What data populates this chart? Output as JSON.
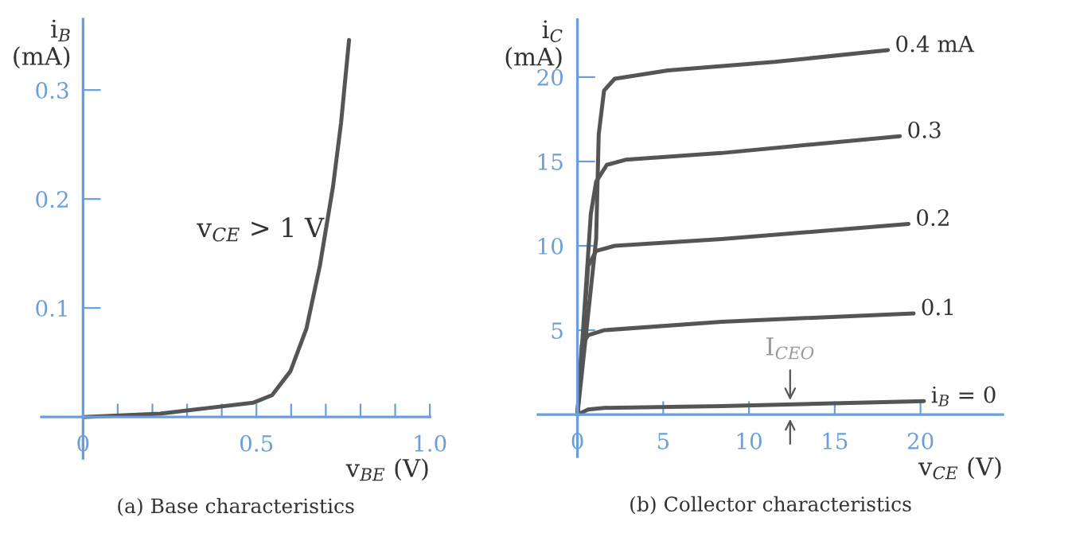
{
  "chart_data": [
    {
      "type": "line",
      "title": "(a) Base characteristics",
      "xlabel": "v$_{BE}$ (V)",
      "ylabel": "i$_{B}$\n(mA)",
      "annotations": [
        "v$_{CE}$ > 1 V"
      ],
      "series": [
        {
          "color": "#555555",
          "x": [
            0,
            0.222,
            0.49,
            0.545,
            0.598,
            0.644,
            0.683,
            0.721,
            0.744,
            0.767
          ],
          "values": [
            0,
            0.003,
            0.013,
            0.02,
            0.042,
            0.081,
            0.139,
            0.212,
            0.27,
            0.346
          ]
        }
      ],
      "xlim": [
        -0.12,
        1.0
      ],
      "ylim": [
        -0.038,
        0.365
      ],
      "xticks": [
        {
          "value": 0,
          "label": "0"
        },
        {
          "value": 0.1,
          "label": null
        },
        {
          "value": 0.2,
          "label": null
        },
        {
          "value": 0.3,
          "label": null
        },
        {
          "value": 0.4,
          "label": null
        },
        {
          "value": 0.5,
          "label": "0.5"
        },
        {
          "value": 0.6,
          "label": null
        },
        {
          "value": 0.7,
          "label": null
        },
        {
          "value": 0.8,
          "label": null
        },
        {
          "value": 0.9,
          "label": null
        },
        {
          "value": 1,
          "label": "1.0"
        }
      ],
      "yticks": [
        0.1,
        0.2,
        0.3
      ],
      "grid": false,
      "legend": false
    },
    {
      "type": "line",
      "title": "(b) Collector characteristics",
      "xlabel": "v$_{CE}$ (V)",
      "ylabel": "i$_{C}$\n(mA)",
      "annotations": [
        {
          "text": "I$_{CEO}$",
          "x": 12.4,
          "y": 0.6
        }
      ],
      "series": [
        {
          "name": "0.4 mA",
          "color": "#555555",
          "x": [
            0,
            1.09,
            1.24,
            1.55,
            2.17,
            5.28,
            11.5,
            18.1
          ],
          "values": [
            0,
            10.4,
            16.6,
            19.2,
            19.9,
            20.4,
            20.9,
            21.6
          ]
        },
        {
          "name": "0.3",
          "color": "#555555",
          "x": [
            0,
            0.78,
            1.09,
            1.71,
            2.8,
            8.4,
            18.8
          ],
          "values": [
            0,
            11.9,
            13.8,
            14.8,
            15.1,
            15.5,
            16.5
          ]
        },
        {
          "name": "0.2",
          "color": "#555555",
          "x": [
            0,
            0.62,
            1.09,
            2.17,
            8.4,
            19.3
          ],
          "values": [
            0,
            8.8,
            9.7,
            10.0,
            10.4,
            11.3
          ]
        },
        {
          "name": "0.1",
          "color": "#555555",
          "x": [
            0,
            0.25,
            0.62,
            1.55,
            8.4,
            19.6
          ],
          "values": [
            0,
            4.1,
            4.7,
            5.0,
            5.5,
            6.0
          ]
        },
        {
          "name": "i$_{B}$ = 0",
          "color": "#555555",
          "x": [
            0,
            0.62,
            1.55,
            8.4,
            20.2
          ],
          "values": [
            0,
            0.3,
            0.4,
            0.5,
            0.8
          ]
        }
      ],
      "xlim": [
        -2.3,
        24.8
      ],
      "ylim": [
        -2.5,
        23.4
      ],
      "xticks": [
        0,
        5,
        10,
        15,
        20
      ],
      "yticks": [
        5,
        10,
        15,
        20
      ],
      "grid": false,
      "legend": false
    }
  ]
}
